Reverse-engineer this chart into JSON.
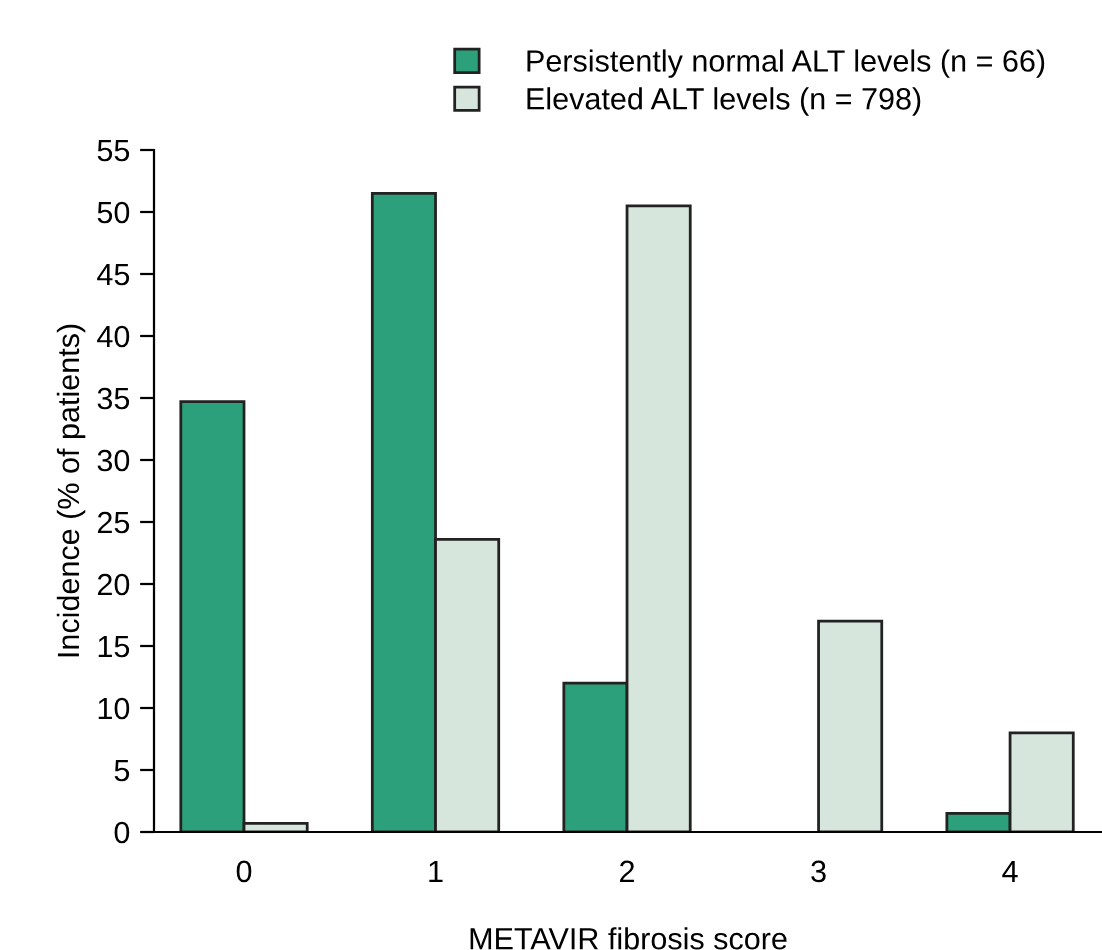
{
  "chart_data": {
    "type": "bar",
    "xlabel": "METAVIR fibrosis score",
    "ylabel": "Incidence (% of patients)",
    "categories": [
      "0",
      "1",
      "2",
      "3",
      "4"
    ],
    "series": [
      {
        "name": "Persistently normal ALT levels (n = 66)",
        "color": "#2ca07a",
        "values": [
          34.7,
          51.5,
          12.0,
          null,
          1.5
        ]
      },
      {
        "name": "Elevated ALT levels (n = 798)",
        "color": "#d6e6dc",
        "values": [
          0.7,
          23.6,
          50.5,
          17.0,
          8.0
        ]
      }
    ],
    "ylim": [
      0,
      55
    ],
    "yticks": [
      0,
      5,
      10,
      15,
      20,
      25,
      30,
      35,
      40,
      45,
      50,
      55
    ],
    "grid": false,
    "legend": "top right"
  }
}
